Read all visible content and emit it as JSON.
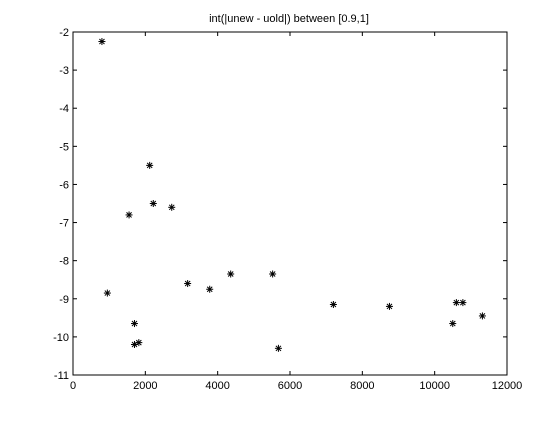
{
  "chart_data": {
    "type": "scatter",
    "title": "int(|unew - uold|) between [0.9,1]",
    "xlabel": "",
    "ylabel": "",
    "xlim": [
      0,
      12000
    ],
    "ylim": [
      -11,
      -2
    ],
    "xticks": [
      0,
      2000,
      4000,
      6000,
      8000,
      10000,
      12000
    ],
    "yticks": [
      -2,
      -3,
      -4,
      -5,
      -6,
      -7,
      -8,
      -9,
      -10,
      -11
    ],
    "grid": false,
    "marker": "*",
    "marker_color": "#000000",
    "points": [
      {
        "x": 800,
        "y": -2.25
      },
      {
        "x": 950,
        "y": -8.85
      },
      {
        "x": 1550,
        "y": -6.8
      },
      {
        "x": 1700,
        "y": -9.65
      },
      {
        "x": 1700,
        "y": -10.2
      },
      {
        "x": 1820,
        "y": -10.15
      },
      {
        "x": 2120,
        "y": -5.5
      },
      {
        "x": 2220,
        "y": -6.5
      },
      {
        "x": 2730,
        "y": -6.6
      },
      {
        "x": 3170,
        "y": -8.6
      },
      {
        "x": 3780,
        "y": -8.75
      },
      {
        "x": 4360,
        "y": -8.35
      },
      {
        "x": 5520,
        "y": -8.35
      },
      {
        "x": 5680,
        "y": -10.3
      },
      {
        "x": 7200,
        "y": -9.15
      },
      {
        "x": 8750,
        "y": -9.2
      },
      {
        "x": 10500,
        "y": -9.65
      },
      {
        "x": 10600,
        "y": -9.1
      },
      {
        "x": 10780,
        "y": -9.1
      },
      {
        "x": 11320,
        "y": -9.45
      }
    ]
  }
}
